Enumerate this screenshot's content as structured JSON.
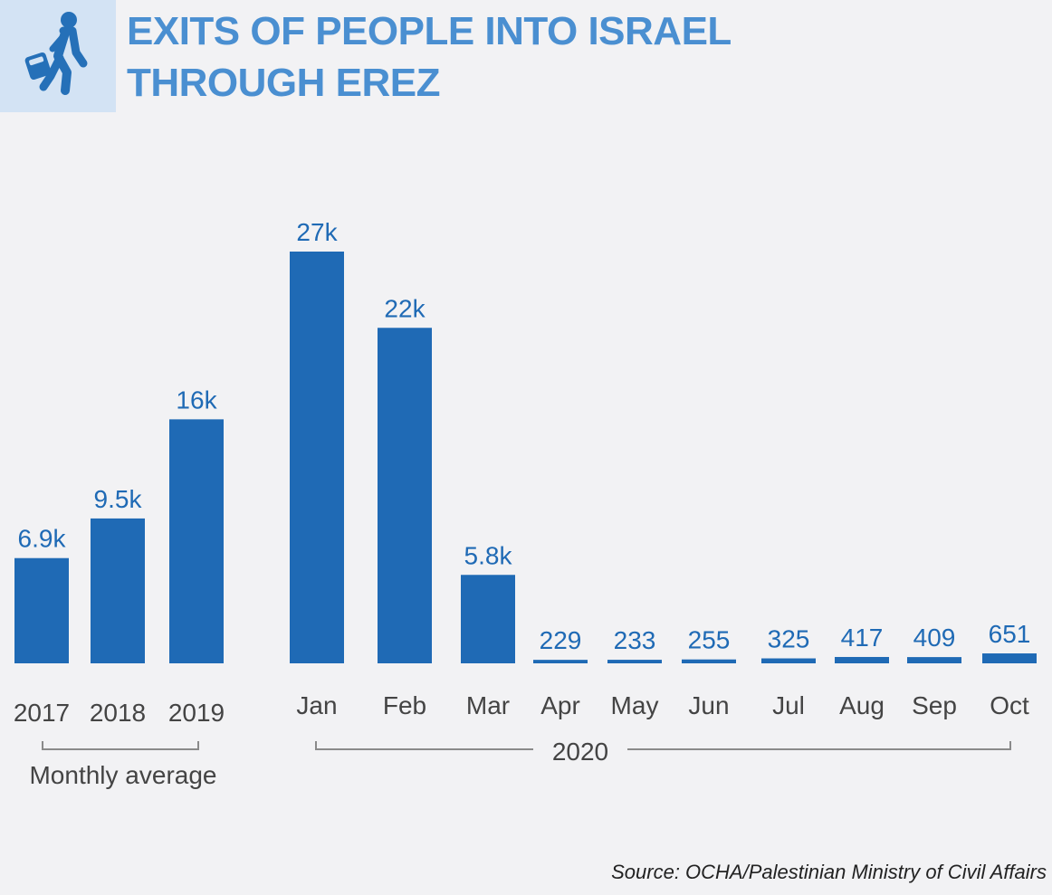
{
  "title_lines": [
    "EXITS OF PEOPLE INTO ISRAEL",
    "THROUGH EREZ"
  ],
  "icon": "person-walking-with-bag-icon",
  "colors": {
    "bar": "#1f6ab5",
    "title": "#4a8fd1",
    "icon": "#2570b8",
    "icon_bg": "#d3e3f4",
    "bracket": "#8a8a8a",
    "label": "#444444"
  },
  "chart_data": {
    "type": "bar",
    "groups": [
      {
        "label": "Monthly average",
        "categories": [
          "2017",
          "2018",
          "2019"
        ],
        "values": [
          6900,
          9500,
          16000
        ],
        "value_labels": [
          "6.9k",
          "9.5k",
          "16k"
        ]
      },
      {
        "label": "2020",
        "categories": [
          "Jan",
          "Feb",
          "Mar",
          "Apr",
          "May",
          "Jun",
          "Jul",
          "Aug",
          "Sep",
          "Oct"
        ],
        "values": [
          27000,
          22000,
          5800,
          229,
          233,
          255,
          325,
          417,
          409,
          651
        ],
        "value_labels": [
          "27k",
          "22k",
          "5.8k",
          "229",
          "233",
          "255",
          "325",
          "417",
          "409",
          "651"
        ]
      }
    ],
    "title": "EXITS OF PEOPLE INTO ISRAEL THROUGH EREZ",
    "xlabel": "",
    "ylabel": "",
    "ylim": [
      0,
      27000
    ],
    "grid": false,
    "legend": "none"
  },
  "source": "Source: OCHA/Palestinian Ministry of Civil Affairs"
}
